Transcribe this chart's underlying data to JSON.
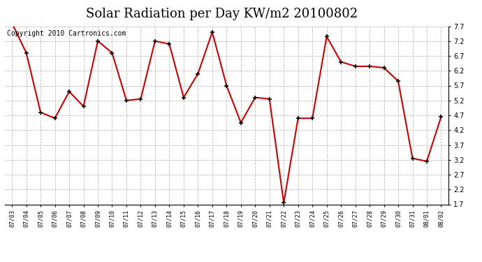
{
  "title": "Solar Radiation per Day KW/m2 20100802",
  "copyright": "Copyright 2010 Cartronics.com",
  "x_labels_display": [
    "07/03",
    "07/04",
    "07/05",
    "07/06",
    "07/07",
    "07/08",
    "07/09",
    "07/10",
    "07/11",
    "07/12",
    "07/13",
    "07/14",
    "07/15",
    "07/16",
    "07/17",
    "07/18",
    "07/19",
    "07/20",
    "07/21",
    "07/22",
    "07/23",
    "07/24",
    "07/25",
    "07/26",
    "07/27",
    "07/28",
    "07/29",
    "07/30",
    "07/31",
    "08/01",
    "08/02"
  ],
  "y_values": [
    7.8,
    6.8,
    4.8,
    4.6,
    5.5,
    5.0,
    7.2,
    6.8,
    5.2,
    5.25,
    7.2,
    7.1,
    5.3,
    6.1,
    7.5,
    5.7,
    4.45,
    5.3,
    5.25,
    1.75,
    4.6,
    4.6,
    7.35,
    6.5,
    6.35,
    6.35,
    6.3,
    5.85,
    3.25,
    3.15,
    4.65
  ],
  "line_color": "#cc0000",
  "marker_color": "#000000",
  "marker_size": 5,
  "marker_edge_width": 1.2,
  "line_width": 1.5,
  "ylim": [
    1.7,
    7.7
  ],
  "yticks": [
    1.7,
    2.2,
    2.7,
    3.2,
    3.7,
    4.2,
    4.7,
    5.2,
    5.7,
    6.2,
    6.7,
    7.2,
    7.7
  ],
  "grid_color": "#bbbbbb",
  "bg_color": "#ffffff",
  "title_fontsize": 13,
  "copyright_fontsize": 7,
  "tick_fontsize": 7,
  "xtick_fontsize": 6
}
